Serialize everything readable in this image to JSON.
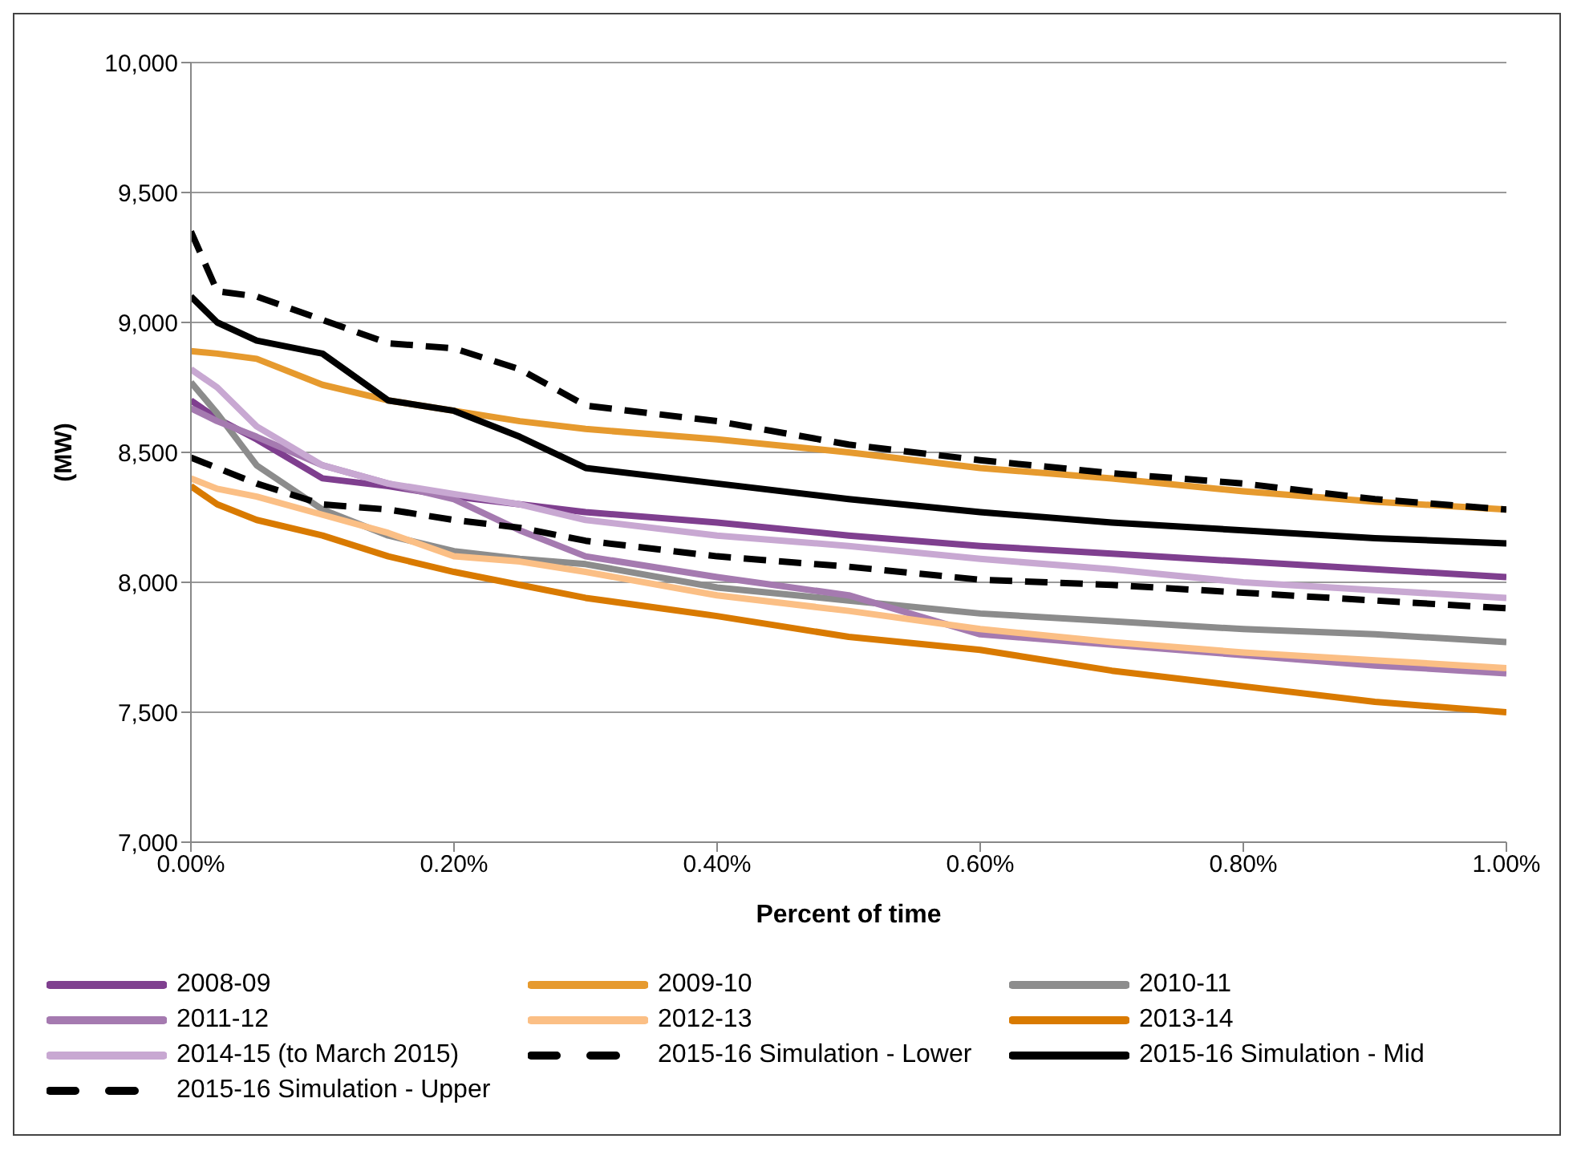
{
  "chart_data": {
    "type": "line",
    "xlabel": "Percent of time",
    "ylabel": "(MW)",
    "x": [
      0,
      0.02,
      0.05,
      0.1,
      0.15,
      0.2,
      0.25,
      0.3,
      0.4,
      0.5,
      0.6,
      0.7,
      0.8,
      0.9,
      1.0
    ],
    "xlim": [
      0,
      1
    ],
    "xticks": [
      {
        "value": 0,
        "label": "0.00%"
      },
      {
        "value": 0.2,
        "label": "0.20%"
      },
      {
        "value": 0.4,
        "label": "0.40%"
      },
      {
        "value": 0.6,
        "label": "0.60%"
      },
      {
        "value": 0.8,
        "label": "0.80%"
      },
      {
        "value": 1,
        "label": "1.00%"
      }
    ],
    "ylim": [
      7000,
      10000
    ],
    "yticks": [
      {
        "value": 7000,
        "label": "7,000"
      },
      {
        "value": 7500,
        "label": "7,500"
      },
      {
        "value": 8000,
        "label": "8,000"
      },
      {
        "value": 8500,
        "label": "8,500"
      },
      {
        "value": 9000,
        "label": "9,000"
      },
      {
        "value": 9500,
        "label": "9,500"
      },
      {
        "value": 10000,
        "label": "10,000"
      }
    ],
    "grid": "y",
    "legend": "bottom",
    "marker": "none",
    "series": [
      {
        "name": "2008-09",
        "color": "#7f3f8f",
        "line_style": "solid",
        "values": [
          8700,
          8630,
          8550,
          8400,
          8370,
          8330,
          8300,
          8270,
          8230,
          8180,
          8140,
          8110,
          8080,
          8050,
          8020
        ]
      },
      {
        "name": "2009-10",
        "color": "#e69a2e",
        "line_style": "solid",
        "values": [
          8890,
          8880,
          8860,
          8760,
          8700,
          8660,
          8620,
          8590,
          8550,
          8500,
          8440,
          8400,
          8350,
          8310,
          8280
        ]
      },
      {
        "name": "2010-11",
        "color": "#8c8c8c",
        "line_style": "solid",
        "values": [
          8770,
          8650,
          8450,
          8280,
          8180,
          8120,
          8090,
          8070,
          7980,
          7930,
          7880,
          7850,
          7820,
          7800,
          7770
        ]
      },
      {
        "name": "2011-12",
        "color": "#a57ab0",
        "line_style": "solid",
        "values": [
          8670,
          8620,
          8560,
          8450,
          8380,
          8320,
          8200,
          8100,
          8020,
          7950,
          7800,
          7760,
          7720,
          7680,
          7650
        ]
      },
      {
        "name": "2012-13",
        "color": "#fbbf85",
        "line_style": "solid",
        "values": [
          8400,
          8360,
          8330,
          8260,
          8190,
          8100,
          8080,
          8040,
          7950,
          7890,
          7820,
          7770,
          7730,
          7700,
          7670
        ]
      },
      {
        "name": "2013-14",
        "color": "#d97a00",
        "line_style": "solid",
        "values": [
          8370,
          8300,
          8240,
          8180,
          8100,
          8040,
          7990,
          7940,
          7870,
          7790,
          7740,
          7660,
          7600,
          7540,
          7500
        ]
      },
      {
        "name": "2014-15 (to March 2015)",
        "color": "#c8a8d2",
        "line_style": "solid",
        "values": [
          8820,
          8750,
          8600,
          8450,
          8380,
          8340,
          8300,
          8240,
          8180,
          8140,
          8090,
          8050,
          8000,
          7970,
          7940
        ]
      },
      {
        "name": "2015-16 Simulation - Lower",
        "color": "#000000",
        "line_style": "dashed",
        "values": [
          8480,
          8440,
          8380,
          8300,
          8280,
          8240,
          8210,
          8160,
          8100,
          8060,
          8010,
          7990,
          7960,
          7930,
          7900
        ]
      },
      {
        "name": "2015-16 Simulation - Mid",
        "color": "#000000",
        "line_style": "solid",
        "values": [
          9100,
          9000,
          8930,
          8880,
          8700,
          8660,
          8560,
          8440,
          8380,
          8320,
          8270,
          8230,
          8200,
          8170,
          8150
        ]
      },
      {
        "name": "2015-16 Simulation - Upper",
        "color": "#000000",
        "line_style": "dashed",
        "values": [
          9350,
          9120,
          9100,
          9010,
          8920,
          8900,
          8820,
          8680,
          8620,
          8530,
          8470,
          8420,
          8380,
          8320,
          8280
        ]
      }
    ]
  }
}
